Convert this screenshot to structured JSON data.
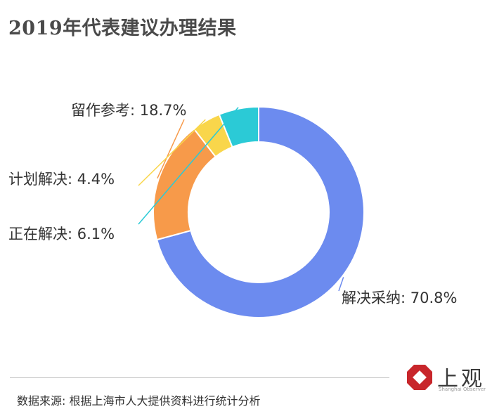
{
  "chart_data": {
    "type": "pie",
    "donut": true,
    "title": "2019年代表建议办理结果",
    "categories": [
      "解决采纳",
      "留作参考",
      "计划解决",
      "正在解决"
    ],
    "values": [
      70.8,
      18.7,
      4.4,
      6.1
    ],
    "unit": "%",
    "labels": [
      "解决采纳: 70.8%",
      "留作参考: 18.7%",
      "计划解决: 4.4%",
      "正在解决: 6.1%"
    ],
    "colors": [
      "#6C8BEF",
      "#F79A4A",
      "#F9D64B",
      "#2BCAD6"
    ],
    "legend": "none"
  },
  "source_note": "数据来源: 根据上海市人大提供资料进行统计分析",
  "logo": {
    "text": "上观",
    "subtext": "Shanghai Observer",
    "colors": {
      "mark": "#C8262B"
    }
  }
}
